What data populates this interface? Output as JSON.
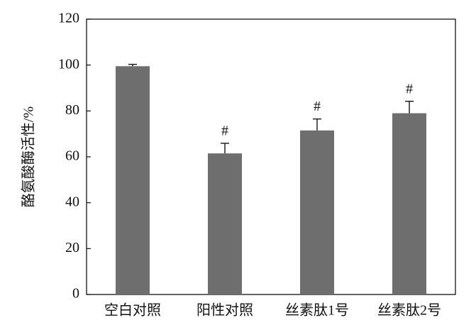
{
  "chart_data": {
    "type": "bar",
    "ylabel": "酪氨酸酶活性/%",
    "categories": [
      "空白对照",
      "阳性对照",
      "丝素肽1号",
      "丝素肽2号"
    ],
    "values": [
      99.5,
      61.5,
      71.5,
      79
    ],
    "errors": [
      0.8,
      4.4,
      5.0,
      5.2
    ],
    "markers": [
      null,
      "#",
      "#",
      "#"
    ],
    "color": "#6e6e6e",
    "ylim": [
      0,
      120
    ],
    "yticks": [
      0,
      20,
      40,
      60,
      80,
      100,
      120
    ],
    "grid": false
  }
}
